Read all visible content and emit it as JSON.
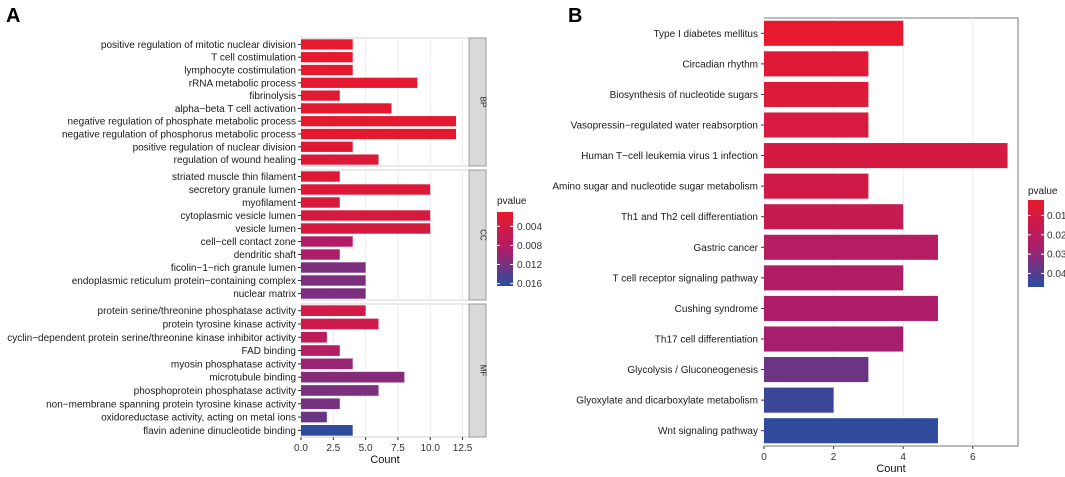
{
  "panels": {
    "left_letter": "A",
    "right_letter": "B"
  },
  "chart_data": [
    {
      "type": "bar",
      "orientation": "horizontal",
      "xlabel": "Count",
      "xlim": [
        0,
        13
      ],
      "xticks": [
        "0.0",
        "2.5",
        "5.0",
        "7.5",
        "10.0",
        "12.5"
      ],
      "xtick_values": [
        0,
        2.5,
        5,
        7.5,
        10,
        12.5
      ],
      "legend": {
        "title": "pvalue",
        "ticks": [
          "0.004",
          "0.008",
          "0.012",
          "0.016"
        ],
        "tick_values": [
          0.004,
          0.008,
          0.012,
          0.016
        ],
        "range": [
          0.001,
          0.0165
        ],
        "placement": "right"
      },
      "facets": [
        {
          "name": "BP",
          "categories": [
            "positive regulation of mitotic nuclear division",
            "T cell costimulation",
            "lymphocyte costimulation",
            "rRNA metabolic process",
            "fibrinolysis",
            "alpha−beta T cell activation",
            "negative regulation of phosphate metabolic process",
            "negative regulation of phosphorus metabolic process",
            "positive regulation of nuclear division",
            "regulation of wound healing"
          ],
          "values": [
            4,
            4,
            4,
            9,
            3,
            7,
            12,
            12,
            4,
            6
          ],
          "pvalues": [
            0.0012,
            0.0012,
            0.0012,
            0.0015,
            0.0018,
            0.0015,
            0.0015,
            0.0015,
            0.0022,
            0.0028
          ]
        },
        {
          "name": "CC",
          "categories": [
            "striated muscle thin filament",
            "secretory granule lumen",
            "myofilament",
            "cytoplasmic vesicle lumen",
            "vesicle lumen",
            "cell−cell contact zone",
            "dendritic shaft",
            "ficolin−1−rich granule lumen",
            "endoplasmic reticulum protein−containing complex",
            "nuclear matrix"
          ],
          "values": [
            3,
            10,
            3,
            10,
            10,
            4,
            3,
            5,
            5,
            5
          ],
          "pvalues": [
            0.0022,
            0.0028,
            0.0032,
            0.0036,
            0.0036,
            0.0085,
            0.009,
            0.0118,
            0.0118,
            0.0118
          ]
        },
        {
          "name": "MF",
          "categories": [
            "protein serine/threonine phosphatase activity",
            "protein tyrosine kinase activity",
            "cyclin−dependent protein serine/threonine kinase inhibitor activity",
            "FAD binding",
            "myosin phosphatase activity",
            "microtubule binding",
            "phosphoprotein phosphatase activity",
            "non−membrane spanning protein tyrosine kinase activity",
            "oxidoreductase activity, acting on metal ions",
            "flavin adenine dinucleotide binding"
          ],
          "values": [
            5,
            6,
            2,
            3,
            4,
            8,
            6,
            3,
            2,
            4
          ],
          "pvalues": [
            0.0042,
            0.0048,
            0.0068,
            0.008,
            0.0102,
            0.0112,
            0.0118,
            0.0122,
            0.0128,
            0.0162
          ]
        }
      ]
    },
    {
      "type": "bar",
      "orientation": "horizontal",
      "xlabel": "Count",
      "xlim": [
        0,
        7.3
      ],
      "xticks": [
        "0",
        "2",
        "4",
        "6"
      ],
      "xtick_values": [
        0,
        2,
        4,
        6
      ],
      "legend": {
        "title": "pvalue",
        "ticks": [
          "0.01",
          "0.02",
          "0.03",
          "0.04"
        ],
        "tick_values": [
          0.01,
          0.02,
          0.03,
          0.04
        ],
        "range": [
          0.002,
          0.047
        ],
        "placement": "right"
      },
      "categories": [
        "Type I diabetes mellitus",
        "Circadian rhythm",
        "Biosynthesis of nucleotide sugars",
        "Vasopressin−regulated water reabsorption",
        "Human T−cell leukemia virus 1 infection",
        "Amino sugar and nucleotide sugar metabolism",
        "Th1 and Th2 cell differentiation",
        "Gastric cancer",
        "T cell receptor signaling pathway",
        "Cushing syndrome",
        "Th17 cell differentiation",
        "Glycolysis / Gluconeogenesis",
        "Glyoxylate and dicarboxylate metabolism",
        "Wnt signaling pathway"
      ],
      "values": [
        4,
        3,
        3,
        3,
        7,
        3,
        4,
        5,
        4,
        5,
        4,
        3,
        2,
        5
      ],
      "pvalues": [
        0.003,
        0.006,
        0.007,
        0.009,
        0.01,
        0.012,
        0.016,
        0.022,
        0.024,
        0.025,
        0.026,
        0.036,
        0.044,
        0.046
      ]
    }
  ]
}
